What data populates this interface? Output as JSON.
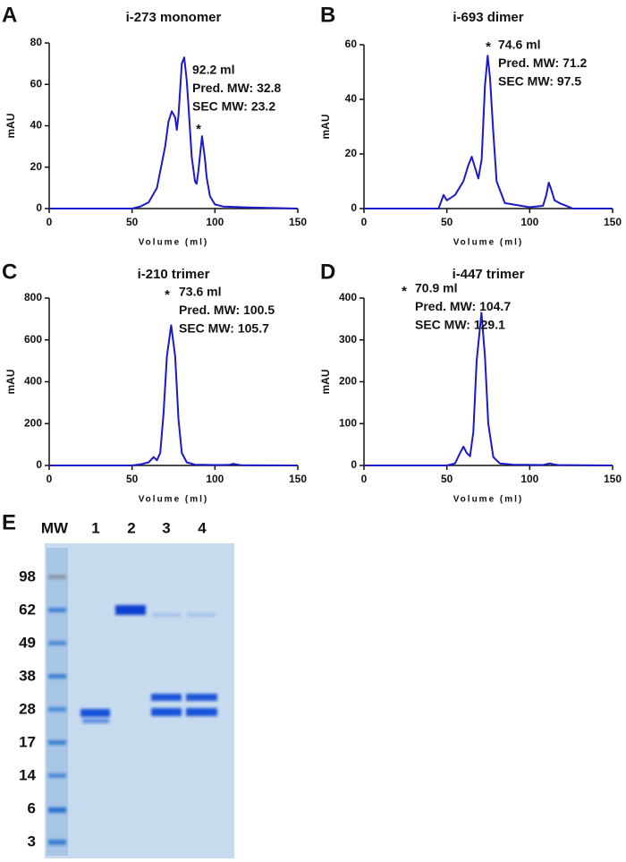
{
  "chart_data": [
    {
      "type": "line",
      "panel": "A",
      "title": "i-273 monomer",
      "xlabel": "Volume (ml)",
      "ylabel": "mAU",
      "xlim": [
        0,
        150
      ],
      "xticks": [
        0,
        50,
        100,
        150
      ],
      "ylim": [
        0,
        80
      ],
      "yticks": [
        0,
        20,
        40,
        60,
        80
      ],
      "color": "#1a1acc",
      "x": [
        0,
        50,
        55,
        60,
        65,
        70,
        72,
        74,
        76,
        77,
        78,
        80,
        81.5,
        83,
        84,
        86,
        88,
        89,
        90,
        92.2,
        94,
        95,
        97,
        100,
        105,
        120,
        150
      ],
      "values": [
        0,
        0,
        1,
        3,
        10,
        30,
        42,
        47,
        44,
        38,
        45,
        70,
        73,
        62,
        50,
        25,
        13,
        12,
        18,
        35,
        24,
        15,
        6,
        2,
        1,
        0.5,
        0
      ],
      "annotations": [
        "92.2 ml",
        "Pred. MW: 32.8",
        "SEC MW: 23.2"
      ],
      "marker": "*"
    },
    {
      "type": "line",
      "panel": "B",
      "title": "i-693 dimer",
      "xlabel": "Volume (ml)",
      "ylabel": "mAU",
      "xlim": [
        0,
        150
      ],
      "xticks": [
        0,
        50,
        100,
        150
      ],
      "ylim": [
        0,
        60
      ],
      "yticks": [
        0,
        20,
        40,
        60
      ],
      "color": "#1a1acc",
      "x": [
        0,
        45,
        48,
        50,
        55,
        60,
        63,
        65,
        67,
        69,
        71,
        73,
        74.6,
        76,
        78,
        80,
        85,
        100,
        108,
        110,
        111.5,
        113,
        115,
        118,
        122,
        126,
        150
      ],
      "values": [
        0,
        0,
        5,
        3,
        5,
        10,
        16,
        19,
        15,
        11,
        18,
        45,
        56,
        48,
        28,
        10,
        2,
        0.5,
        1,
        5,
        9.5,
        7,
        3,
        2,
        1,
        0,
        0
      ],
      "annotations": [
        "74.6 ml",
        "Pred. MW: 71.2",
        "SEC MW: 97.5"
      ],
      "marker": "*"
    },
    {
      "type": "line",
      "panel": "C",
      "title": "i-210 trimer",
      "xlabel": "Volume (ml)",
      "ylabel": "mAU",
      "xlim": [
        0,
        150
      ],
      "xticks": [
        0,
        50,
        100,
        150
      ],
      "ylim": [
        0,
        800
      ],
      "yticks": [
        0,
        200,
        400,
        600,
        800
      ],
      "color": "#1a1acc",
      "x": [
        0,
        50,
        55,
        60,
        63,
        65,
        67,
        69,
        71,
        73.6,
        76,
        78,
        80,
        83,
        88,
        100,
        109,
        111,
        113,
        116,
        150
      ],
      "values": [
        0,
        0,
        5,
        15,
        40,
        25,
        60,
        250,
        520,
        670,
        520,
        220,
        60,
        15,
        4,
        2,
        3,
        8,
        5,
        1,
        0
      ],
      "annotations": [
        "73.6 ml",
        "Pred. MW: 100.5",
        "SEC MW: 105.7"
      ],
      "marker": "*"
    },
    {
      "type": "line",
      "panel": "D",
      "title": "i-447 trimer",
      "xlabel": "Volume (ml)",
      "ylabel": "mAU",
      "xlim": [
        0,
        150
      ],
      "xticks": [
        0,
        50,
        100,
        150
      ],
      "ylim": [
        0,
        400
      ],
      "yticks": [
        0,
        100,
        200,
        300,
        400
      ],
      "color": "#1a1acc",
      "x": [
        0,
        50,
        55,
        58,
        60,
        62,
        64,
        66,
        68,
        70.9,
        73,
        75,
        78,
        82,
        90,
        108,
        110,
        112,
        114,
        117,
        150
      ],
      "values": [
        0,
        0,
        5,
        30,
        45,
        30,
        22,
        80,
        250,
        365,
        260,
        100,
        20,
        5,
        2,
        1,
        3,
        5,
        3,
        1,
        0
      ],
      "annotations": [
        "70.9 ml",
        "Pred. MW: 104.7",
        "SEC MW: 129.1"
      ],
      "marker": "*"
    }
  ],
  "gel": {
    "panel": "E",
    "lane_labels": [
      "MW",
      "1",
      "2",
      "3",
      "4"
    ],
    "mw_markers": [
      98,
      62,
      49,
      38,
      28,
      17,
      14,
      6,
      3
    ]
  }
}
